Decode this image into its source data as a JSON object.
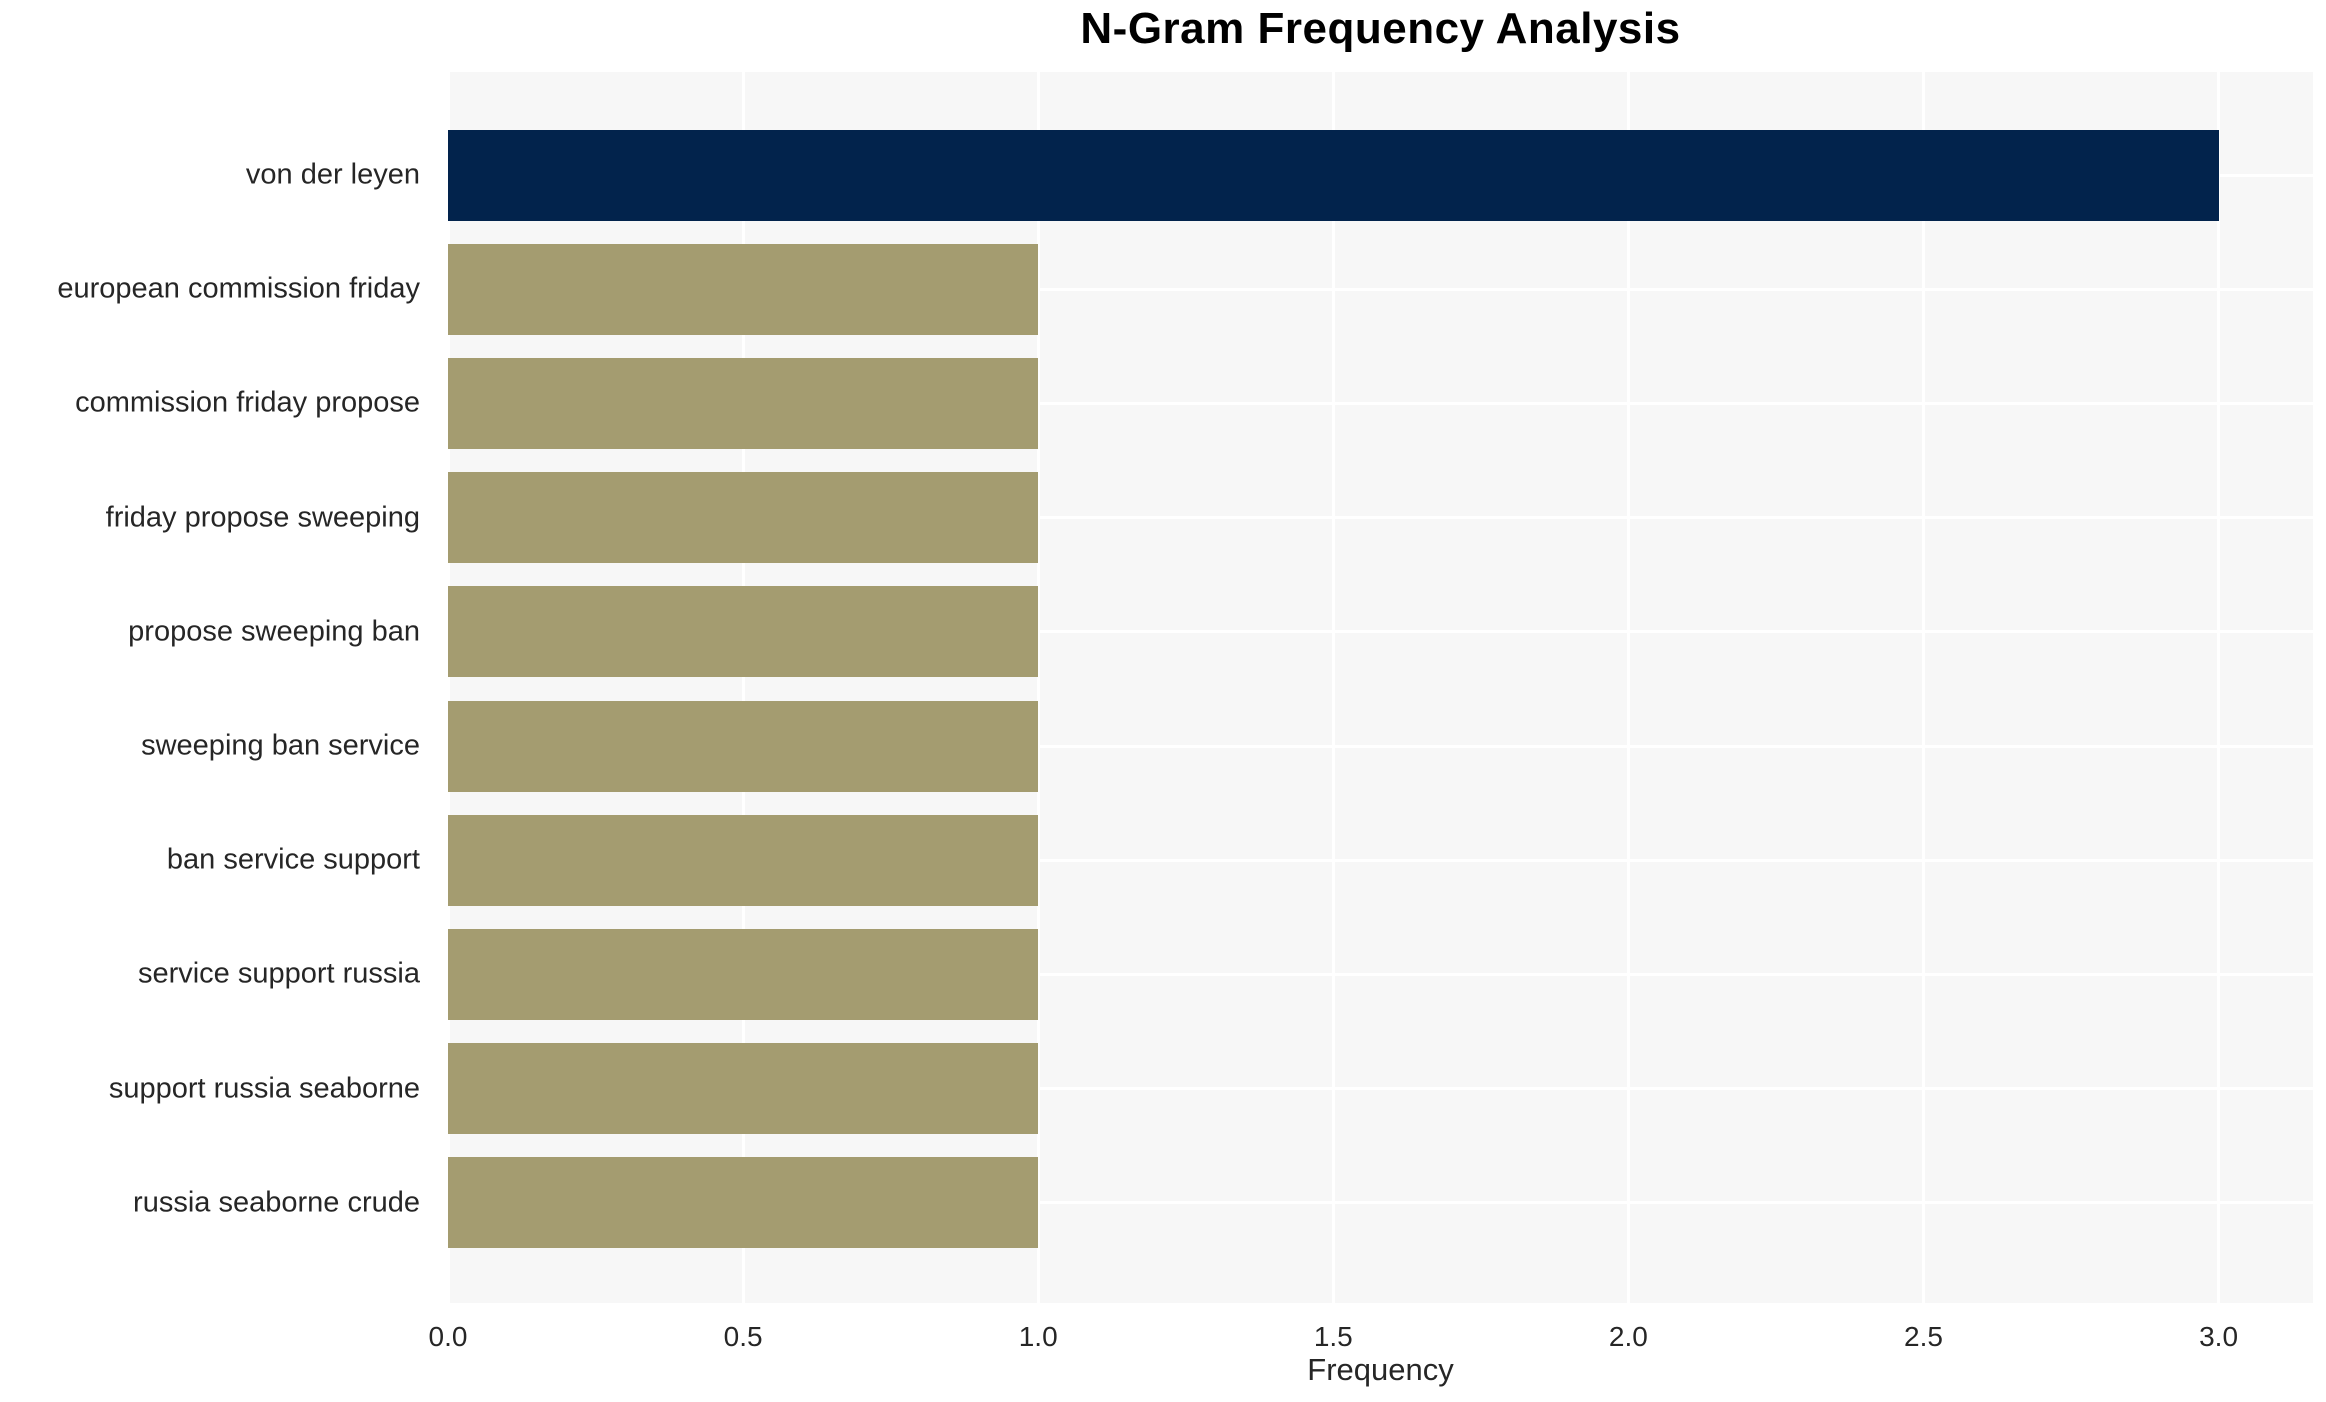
{
  "chart_data": {
    "type": "bar",
    "orientation": "horizontal",
    "title": "N-Gram Frequency Analysis",
    "xlabel": "Frequency",
    "ylabel": "",
    "categories": [
      "von der leyen",
      "european commission friday",
      "commission friday propose",
      "friday propose sweeping",
      "propose sweeping ban",
      "sweeping ban service",
      "ban service support",
      "service support russia",
      "support russia seaborne",
      "russia seaborne crude"
    ],
    "values": [
      3,
      1,
      1,
      1,
      1,
      1,
      1,
      1,
      1,
      1
    ],
    "bar_colors": [
      "#02234c",
      "#a49c70",
      "#a49c70",
      "#a49c70",
      "#a49c70",
      "#a49c70",
      "#a49c70",
      "#a49c70",
      "#a49c70",
      "#a49c70"
    ],
    "xlim": [
      0,
      3.16
    ],
    "xticks": [
      0.0,
      0.5,
      1.0,
      1.5,
      2.0,
      2.5,
      3.0
    ],
    "xtick_labels": [
      "0.0",
      "0.5",
      "1.0",
      "1.5",
      "2.0",
      "2.5",
      "3.0"
    ],
    "grid": true,
    "gridline_color": "#ffffff",
    "plot_background": "#f7f7f7",
    "figure_background": "#ffffff",
    "text_color": "#262626",
    "title_color": "#000000",
    "legend": false
  }
}
